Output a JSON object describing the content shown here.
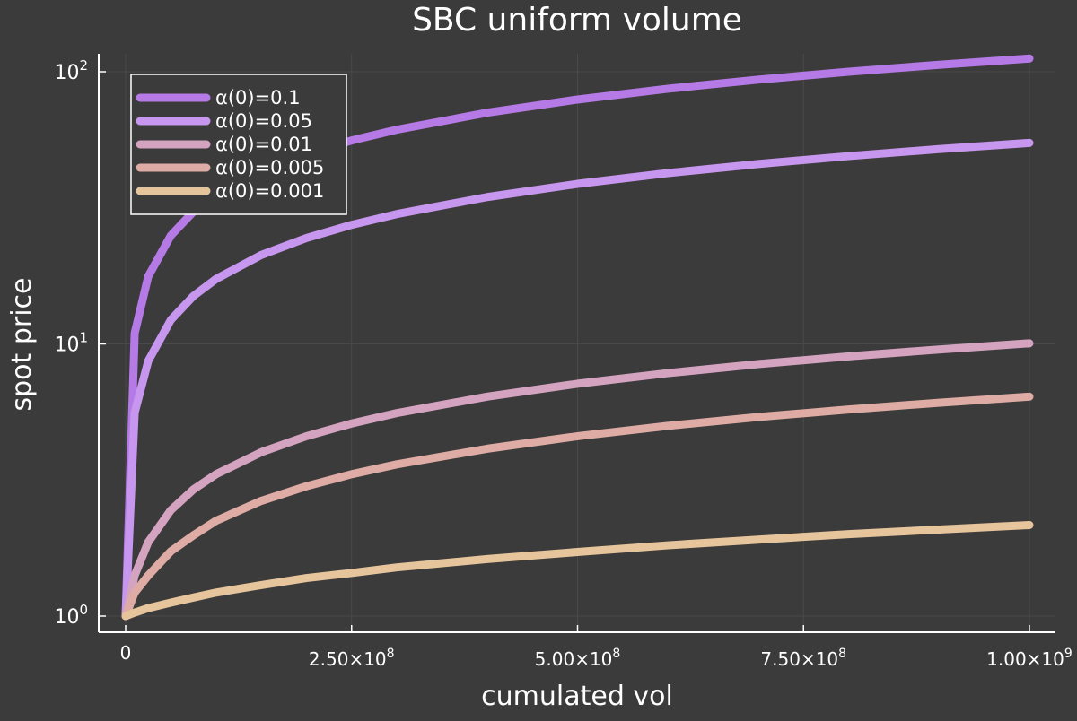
{
  "chart_data": {
    "type": "line",
    "title": "SBC uniform volume",
    "xlabel": "cumulated vol",
    "ylabel": "spot price",
    "xlim": [
      0,
      1000000000
    ],
    "ylim": [
      1,
      100
    ],
    "yscale": "log",
    "grid": true,
    "legend_position": "top-left",
    "background_color": "#3b3b3b",
    "x_ticks": [
      {
        "value": 0,
        "label": "0"
      },
      {
        "value": 250000000,
        "base": "2.50×10",
        "exp": "8"
      },
      {
        "value": 500000000,
        "base": "5.00×10",
        "exp": "8"
      },
      {
        "value": 750000000,
        "base": "7.50×10",
        "exp": "8"
      },
      {
        "value": 1000000000,
        "base": "1.00×10",
        "exp": "9"
      }
    ],
    "y_ticks": [
      {
        "value": 1,
        "base": "10",
        "exp": "0"
      },
      {
        "value": 10,
        "base": "10",
        "exp": "1"
      },
      {
        "value": 100,
        "base": "10",
        "exp": "2"
      }
    ],
    "x": [
      0,
      10000000,
      25000000,
      50000000,
      75000000,
      100000000,
      150000000,
      200000000,
      250000000,
      300000000,
      400000000,
      500000000,
      600000000,
      700000000,
      800000000,
      900000000,
      1000000000
    ],
    "series": [
      {
        "name": "α(0)=0.1",
        "color": "#b57ae6",
        "values": [
          1,
          10.95,
          17.71,
          25.01,
          30.62,
          35.36,
          43.3,
          50.0,
          55.9,
          61.24,
          70.71,
          79.06,
          86.6,
          93.54,
          100.0,
          106.07,
          111.8
        ]
      },
      {
        "name": "α(0)=0.05",
        "color": "#c796ee",
        "values": [
          1,
          5.59,
          8.66,
          12.25,
          15.0,
          17.32,
          21.21,
          24.49,
          27.39,
          30.0,
          34.64,
          38.73,
          42.43,
          45.83,
          48.99,
          51.96,
          54.77
        ]
      },
      {
        "name": "α(0)=0.01",
        "color": "#d4a3c0",
        "values": [
          1,
          1.41,
          1.87,
          2.45,
          2.92,
          3.32,
          4.0,
          4.58,
          5.1,
          5.57,
          6.4,
          7.14,
          7.81,
          8.43,
          9.0,
          9.54,
          10.05
        ]
      },
      {
        "name": "α(0)=0.005",
        "color": "#deaca4",
        "values": [
          1,
          1.22,
          1.41,
          1.73,
          1.98,
          2.24,
          2.65,
          3.0,
          3.32,
          3.61,
          4.12,
          4.58,
          5.0,
          5.39,
          5.74,
          6.08,
          6.4
        ]
      },
      {
        "name": "α(0)=0.001",
        "color": "#e6c49c",
        "values": [
          1,
          1.03,
          1.07,
          1.12,
          1.17,
          1.22,
          1.3,
          1.38,
          1.44,
          1.51,
          1.62,
          1.72,
          1.82,
          1.91,
          2.0,
          2.08,
          2.16
        ]
      }
    ]
  }
}
